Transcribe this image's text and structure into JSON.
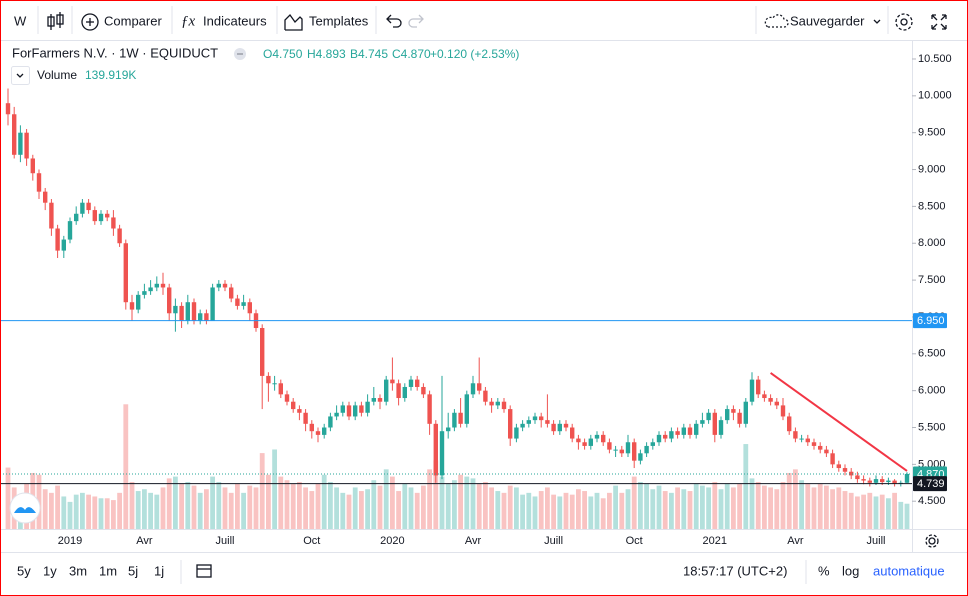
{
  "toolbar": {
    "interval": "W",
    "compare": "Comparer",
    "indicators": "Indicateurs",
    "templates": "Templates",
    "save": "Sauvegarder"
  },
  "legend": {
    "symbol": "ForFarmers N.V. · 1W · EQUIDUCT",
    "open": "O4.750",
    "high": "H4.893",
    "low": "B4.745",
    "close": "C4.870",
    "change": "+0.120 (+2.53%)",
    "volume_label": "Volume",
    "volume_value": "139.919K"
  },
  "chart_data": {
    "type": "candlestick",
    "categories": [
      null,
      null,
      null,
      null,
      null,
      null,
      null,
      null,
      null,
      null,
      "2019",
      null,
      null,
      null,
      null,
      null,
      null,
      null,
      null,
      null,
      null,
      null,
      "Avr",
      null,
      null,
      null,
      null,
      null,
      null,
      null,
      null,
      null,
      null,
      null,
      null,
      "Juill",
      null,
      null,
      null,
      null,
      null,
      null,
      null,
      null,
      null,
      null,
      null,
      null,
      null,
      "Oct",
      null,
      null,
      null,
      null,
      null,
      null,
      null,
      null,
      null,
      null,
      null,
      null,
      "2020",
      null,
      null,
      null,
      null,
      null,
      null,
      null,
      null,
      null,
      null,
      null,
      null,
      "Avr",
      null,
      null,
      null,
      null,
      null,
      null,
      null,
      null,
      null,
      null,
      null,
      null,
      "Juill",
      null,
      null,
      null,
      null,
      null,
      null,
      null,
      null,
      null,
      null,
      null,
      null,
      "Oct",
      null,
      null,
      null,
      null,
      null,
      null,
      null,
      null,
      null,
      null,
      null,
      null,
      "2021",
      null,
      null,
      null,
      null,
      null,
      null,
      null,
      null,
      null,
      null,
      null,
      null,
      "Avr",
      null,
      null,
      null,
      null,
      null,
      null,
      null,
      null,
      null,
      null,
      null,
      null,
      "Juill",
      null,
      null,
      null,
      null,
      null
    ],
    "open": [
      9.9,
      9.75,
      9.2,
      9.5,
      9.15,
      8.95,
      8.7,
      8.55,
      8.2,
      7.9,
      8.05,
      8.3,
      8.4,
      8.55,
      8.45,
      8.3,
      8.4,
      8.35,
      8.2,
      8.0,
      7.2,
      7.1,
      7.3,
      7.35,
      7.4,
      7.45,
      7.4,
      7.05,
      7.15,
      6.95,
      7.2,
      6.95,
      7.05,
      6.95,
      7.4,
      7.45,
      7.4,
      7.25,
      7.15,
      7.2,
      7.05,
      6.85,
      6.2,
      6.1,
      6.1,
      5.95,
      5.85,
      5.75,
      5.7,
      5.55,
      5.45,
      5.4,
      5.5,
      5.65,
      5.7,
      5.8,
      5.65,
      5.8,
      5.7,
      5.85,
      5.9,
      5.85,
      6.15,
      6.1,
      5.9,
      6.05,
      6.15,
      6.05,
      5.95,
      5.55,
      4.85,
      5.45,
      5.5,
      5.7,
      5.55,
      5.95,
      6.1,
      6.0,
      5.85,
      5.8,
      5.85,
      5.75,
      5.35,
      5.5,
      5.55,
      5.6,
      5.65,
      5.6,
      5.55,
      5.45,
      5.55,
      5.5,
      5.35,
      5.3,
      5.25,
      5.35,
      5.4,
      5.3,
      5.2,
      5.2,
      5.15,
      5.3,
      5.05,
      5.15,
      5.25,
      5.3,
      5.4,
      5.35,
      5.45,
      5.4,
      5.5,
      5.4,
      5.55,
      5.6,
      5.7,
      5.4,
      5.6,
      5.75,
      5.7,
      5.55,
      5.85,
      6.15,
      5.95,
      5.9,
      5.85,
      5.8,
      5.65,
      5.45,
      5.35,
      5.35,
      5.3,
      5.25,
      5.2,
      5.15,
      5.0,
      4.95,
      4.9,
      4.85,
      4.8,
      4.78,
      4.75,
      4.8,
      4.76,
      4.78,
      4.74,
      4.75
    ],
    "high": [
      10.1,
      9.85,
      9.6,
      9.55,
      9.2,
      9.0,
      8.75,
      8.6,
      8.25,
      8.1,
      8.35,
      8.5,
      8.6,
      8.6,
      8.5,
      8.45,
      8.45,
      8.45,
      8.25,
      8.05,
      7.3,
      7.35,
      7.45,
      7.5,
      7.55,
      7.6,
      7.45,
      7.25,
      7.2,
      7.3,
      7.25,
      7.1,
      7.1,
      7.45,
      7.5,
      7.5,
      7.45,
      7.3,
      7.3,
      7.25,
      7.1,
      6.9,
      6.25,
      6.2,
      6.15,
      6.0,
      5.9,
      5.8,
      5.75,
      5.6,
      5.5,
      5.55,
      5.7,
      5.8,
      5.85,
      5.85,
      5.85,
      5.85,
      5.95,
      6.05,
      5.95,
      6.2,
      6.45,
      6.15,
      6.1,
      6.2,
      6.2,
      6.1,
      6.0,
      5.6,
      6.2,
      5.7,
      5.75,
      5.9,
      6.0,
      6.2,
      6.45,
      6.05,
      5.9,
      5.9,
      5.9,
      5.8,
      5.55,
      5.6,
      5.65,
      5.7,
      5.7,
      5.95,
      5.6,
      5.6,
      5.6,
      5.55,
      5.4,
      5.35,
      5.4,
      5.45,
      5.45,
      5.35,
      5.25,
      5.25,
      5.4,
      5.35,
      5.2,
      5.3,
      5.35,
      5.45,
      5.45,
      5.5,
      5.5,
      5.55,
      5.55,
      5.6,
      5.7,
      5.75,
      5.75,
      5.65,
      5.8,
      5.8,
      5.75,
      5.9,
      6.25,
      6.2,
      6.0,
      5.95,
      5.9,
      5.9,
      5.7,
      5.5,
      5.4,
      5.4,
      5.35,
      5.3,
      5.25,
      5.2,
      5.05,
      5.0,
      4.95,
      4.9,
      4.85,
      4.82,
      4.85,
      4.84,
      4.82,
      4.8,
      4.78,
      4.893
    ],
    "low": [
      9.6,
      9.15,
      9.1,
      9.05,
      8.85,
      8.6,
      8.45,
      8.1,
      7.8,
      7.8,
      8.0,
      8.25,
      8.35,
      8.4,
      8.25,
      8.25,
      8.3,
      8.1,
      7.95,
      7.1,
      6.95,
      7.05,
      7.25,
      7.3,
      7.35,
      7.3,
      6.95,
      6.8,
      6.85,
      6.9,
      6.9,
      6.9,
      6.9,
      6.95,
      7.35,
      7.35,
      7.2,
      7.1,
      7.1,
      6.95,
      6.8,
      5.75,
      5.85,
      6.0,
      5.9,
      5.8,
      5.7,
      5.6,
      5.45,
      5.35,
      5.3,
      5.35,
      5.45,
      5.6,
      5.65,
      5.6,
      5.6,
      5.65,
      5.65,
      5.8,
      5.75,
      5.8,
      6.0,
      5.8,
      5.85,
      6.0,
      6.0,
      5.9,
      5.4,
      4.75,
      4.8,
      5.35,
      5.45,
      5.5,
      5.5,
      5.9,
      5.95,
      5.8,
      5.7,
      5.75,
      5.7,
      5.25,
      5.3,
      5.45,
      5.5,
      5.55,
      5.5,
      5.5,
      5.4,
      5.4,
      5.45,
      5.3,
      5.2,
      5.2,
      5.2,
      5.3,
      5.25,
      5.15,
      5.1,
      5.1,
      5.1,
      4.95,
      5.0,
      5.1,
      5.2,
      5.25,
      5.3,
      5.3,
      5.35,
      5.35,
      5.35,
      5.35,
      5.5,
      5.55,
      5.3,
      5.35,
      5.55,
      5.6,
      5.5,
      5.5,
      5.8,
      5.9,
      5.85,
      5.8,
      5.75,
      5.6,
      5.4,
      5.3,
      5.3,
      5.25,
      5.2,
      5.15,
      5.1,
      4.95,
      4.9,
      4.85,
      4.8,
      4.75,
      4.73,
      4.7,
      4.72,
      4.72,
      4.72,
      4.7,
      4.7,
      4.745
    ],
    "close": [
      9.75,
      9.2,
      9.5,
      9.15,
      8.95,
      8.7,
      8.55,
      8.2,
      7.9,
      8.05,
      8.3,
      8.4,
      8.55,
      8.45,
      8.3,
      8.4,
      8.35,
      8.2,
      8.0,
      7.2,
      7.1,
      7.3,
      7.35,
      7.4,
      7.45,
      7.4,
      7.05,
      7.15,
      6.95,
      7.2,
      6.95,
      7.05,
      6.95,
      7.4,
      7.45,
      7.4,
      7.25,
      7.15,
      7.2,
      7.05,
      6.85,
      6.2,
      6.1,
      6.1,
      5.95,
      5.85,
      5.75,
      5.7,
      5.55,
      5.45,
      5.4,
      5.5,
      5.65,
      5.7,
      5.8,
      5.65,
      5.8,
      5.7,
      5.85,
      5.9,
      5.85,
      6.15,
      6.1,
      5.9,
      6.05,
      6.15,
      6.05,
      5.95,
      5.55,
      4.85,
      5.45,
      5.5,
      5.7,
      5.55,
      5.95,
      6.1,
      6.0,
      5.85,
      5.8,
      5.85,
      5.75,
      5.35,
      5.5,
      5.55,
      5.6,
      5.65,
      5.6,
      5.55,
      5.45,
      5.55,
      5.5,
      5.35,
      5.3,
      5.25,
      5.35,
      5.4,
      5.3,
      5.2,
      5.2,
      5.15,
      5.3,
      5.05,
      5.15,
      5.25,
      5.3,
      5.4,
      5.35,
      5.45,
      5.4,
      5.5,
      5.4,
      5.55,
      5.6,
      5.7,
      5.4,
      5.6,
      5.75,
      5.7,
      5.55,
      5.85,
      6.15,
      5.95,
      5.9,
      5.85,
      5.8,
      5.65,
      5.45,
      5.35,
      5.35,
      5.3,
      5.25,
      5.2,
      5.15,
      5.0,
      4.95,
      4.9,
      4.85,
      4.8,
      4.78,
      4.75,
      4.8,
      4.76,
      4.78,
      4.74,
      4.75,
      4.87
    ],
    "volume": [
      340,
      230,
      190,
      250,
      310,
      300,
      220,
      200,
      240,
      180,
      150,
      190,
      200,
      190,
      180,
      170,
      170,
      160,
      200,
      690,
      260,
      210,
      220,
      200,
      190,
      230,
      280,
      290,
      250,
      260,
      240,
      200,
      220,
      290,
      260,
      230,
      200,
      250,
      200,
      240,
      230,
      420,
      300,
      440,
      290,
      270,
      250,
      260,
      230,
      210,
      250,
      300,
      260,
      230,
      200,
      190,
      230,
      210,
      220,
      270,
      240,
      330,
      290,
      210,
      250,
      230,
      200,
      240,
      330,
      380,
      290,
      250,
      270,
      300,
      290,
      280,
      250,
      260,
      230,
      210,
      200,
      240,
      230,
      190,
      200,
      180,
      210,
      230,
      190,
      180,
      200,
      190,
      220,
      210,
      180,
      200,
      170,
      200,
      240,
      200,
      220,
      290,
      260,
      250,
      220,
      240,
      210,
      200,
      230,
      220,
      210,
      250,
      240,
      230,
      260,
      220,
      250,
      230,
      250,
      470,
      280,
      260,
      240,
      230,
      220,
      260,
      310,
      330,
      270,
      250,
      230,
      250,
      240,
      220,
      230,
      210,
      200,
      180,
      190,
      200,
      180,
      190,
      170,
      200,
      150,
      139.919
    ],
    "up_color": "#26a69a",
    "down_color": "#ef5350",
    "ylim": [
      4.123,
      10.744
    ],
    "yticks": [
      {
        "value": 10.5,
        "label": "10.500"
      },
      {
        "value": 10,
        "label": "10.000"
      },
      {
        "value": 9.5,
        "label": "9.500"
      },
      {
        "value": 9,
        "label": "9.000"
      },
      {
        "value": 8.5,
        "label": "8.500"
      },
      {
        "value": 8,
        "label": "8.000"
      },
      {
        "value": 7.5,
        "label": "7.500"
      },
      {
        "value": 7,
        "label": "7.000"
      },
      {
        "value": 6.5,
        "label": "6.500"
      },
      {
        "value": 6,
        "label": "6.000"
      },
      {
        "value": 5.5,
        "label": "5.500"
      },
      {
        "value": 5,
        "label": "5.000"
      },
      {
        "value": 4.5,
        "label": "4.500"
      }
    ],
    "volume_ylim": [
      0,
      2700
    ],
    "grid": false,
    "price_lines": [
      {
        "value": 6.95,
        "label": "6.950",
        "color": "#2196f3"
      },
      {
        "value": 4.87,
        "label": "4.870",
        "color": "#26a69a"
      },
      {
        "value": 4.739,
        "label": "4.739",
        "color": "#131722"
      }
    ],
    "trend_line": {
      "x": [
        123,
        145
      ],
      "y": [
        6.24,
        4.91
      ],
      "color": "#f23645"
    }
  },
  "footer": {
    "ranges": [
      "5y",
      "1y",
      "3m",
      "1m",
      "5j",
      "1j"
    ],
    "clock": "18:57:17 (UTC+2)",
    "percent": "%",
    "log": "log",
    "auto": "automatique"
  }
}
